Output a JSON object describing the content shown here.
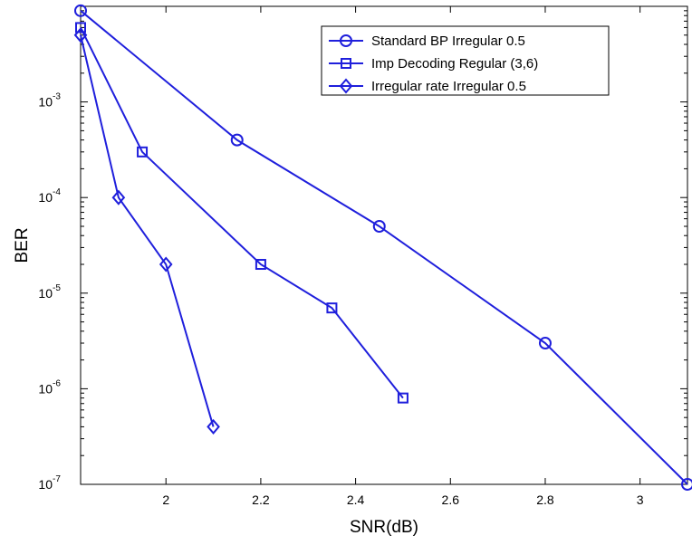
{
  "chart_data": {
    "type": "line",
    "title": "",
    "xlabel": "SNR(dB)",
    "ylabel": "BER",
    "xlim": [
      1.82,
      3.1
    ],
    "ylim": [
      1e-07,
      0.01
    ],
    "yscale": "log",
    "xticks": [
      "2",
      "2.2",
      "2.4",
      "2.6",
      "2.8",
      "3"
    ],
    "xtick_values": [
      2,
      2.2,
      2.4,
      2.6,
      2.8,
      3
    ],
    "yticks": [
      {
        "base": "10",
        "exp": "-7",
        "value": 1e-07
      },
      {
        "base": "10",
        "exp": "-6",
        "value": 1e-06
      },
      {
        "base": "10",
        "exp": "-5",
        "value": 1e-05
      },
      {
        "base": "10",
        "exp": "-4",
        "value": 0.0001
      },
      {
        "base": "10",
        "exp": "-3",
        "value": 0.001
      }
    ],
    "grid": false,
    "legend_position": "top-right",
    "line_color": "#1f1fdc",
    "series": [
      {
        "name": "Standard BP Irregular 0.5",
        "marker": "circle",
        "x": [
          1.82,
          2.15,
          2.45,
          2.8,
          3.1
        ],
        "y": [
          0.009,
          0.0004,
          5e-05,
          3e-06,
          1e-07
        ]
      },
      {
        "name": "Imp Decoding Regular (3,6)",
        "marker": "square",
        "x": [
          1.82,
          1.95,
          2.2,
          2.35,
          2.5
        ],
        "y": [
          0.006,
          0.0003,
          2e-05,
          7e-06,
          8e-07
        ]
      },
      {
        "name": "Irregular rate Irregular 0.5",
        "marker": "diamond",
        "x": [
          1.82,
          1.9,
          2.0,
          2.1
        ],
        "y": [
          0.005,
          0.0001,
          2e-05,
          4e-07
        ]
      }
    ]
  }
}
